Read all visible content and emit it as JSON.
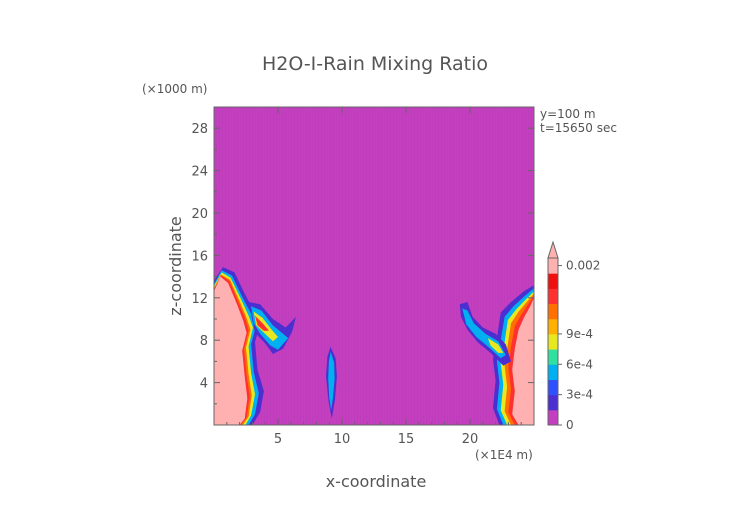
{
  "chart_data": {
    "type": "heatmap",
    "title": "H2O-I-Rain Mixing Ratio",
    "xlabel": "x-coordinate",
    "ylabel": "z-coordinate",
    "x_unit": "(×1E4 m)",
    "y_unit": "(×1000 m)",
    "annotations": [
      "y=100 m",
      "t=15650 sec"
    ],
    "xlim": [
      0,
      25
    ],
    "ylim": [
      0,
      30
    ],
    "x_ticks": [
      5,
      10,
      15,
      20
    ],
    "y_ticks": [
      4,
      8,
      12,
      16,
      20,
      24,
      28
    ],
    "background_color": "#c33fc0",
    "colorbar": {
      "labels": [
        {
          "value": 0,
          "text": "0"
        },
        {
          "value": 0.0003,
          "text": "3e-4"
        },
        {
          "value": 0.0006,
          "text": "6e-4"
        },
        {
          "value": 0.0009,
          "text": "9e-4"
        },
        {
          "value": 0.002,
          "text": "0.002"
        }
      ],
      "colors": [
        "#c33fc0",
        "#4b2fd0",
        "#3050ff",
        "#00b0f0",
        "#30e0a0",
        "#e8e820",
        "#ffb000",
        "#ff7000",
        "#ff3030",
        "#f01010",
        "#ffb0b0"
      ]
    },
    "regions": [
      {
        "name": "left rain shaft",
        "x": [
          0,
          2.8
        ],
        "z": [
          0,
          14.8
        ],
        "level": 0.002
      },
      {
        "name": "left outflow",
        "x": [
          2.8,
          6.5
        ],
        "z": [
          6.5,
          12
        ],
        "level": 0.0006
      },
      {
        "name": "center shaft",
        "x": [
          8.7,
          9.6
        ],
        "z": [
          0.6,
          7.4
        ],
        "level": 0.0003
      },
      {
        "name": "right rain shaft",
        "x": [
          22.5,
          25
        ],
        "z": [
          0,
          13.2
        ],
        "level": 0.002
      },
      {
        "name": "right outflow",
        "x": [
          19,
          22.5
        ],
        "z": [
          3,
          11.5
        ],
        "level": 0.0006
      }
    ]
  }
}
